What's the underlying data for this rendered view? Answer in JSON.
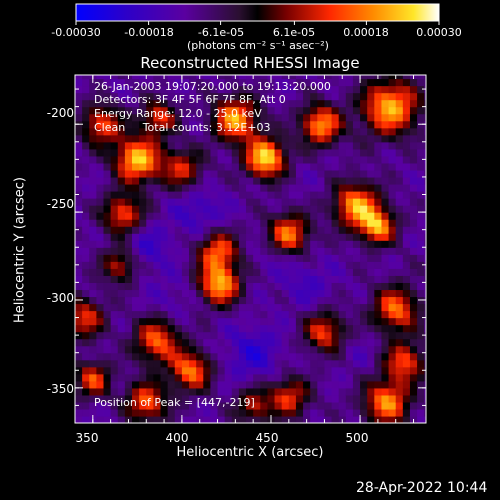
{
  "colorbar": {
    "ticks": [
      "-0.00030",
      "-0.00018",
      "-6.1e-05",
      "6.1e-05",
      "0.00018",
      "0.00030"
    ],
    "tick_values": [
      -0.0003,
      -0.00018,
      -6.1e-05,
      6.1e-05,
      0.00018,
      0.0003
    ],
    "unit": "(photons cm⁻² s⁻¹ asec⁻²)",
    "range": [
      -0.0003,
      0.0003
    ]
  },
  "info": {
    "line1": "26-Jan-2003 19:07:20.000 to 19:13:20.000",
    "line2": "Detectors: 3F 4F 5F 6F 7F 8F, Att 0",
    "line3": "Energy Range: 12.0 - 25.0 keV",
    "line4": "Clean     Total counts: 3.12E+03",
    "peak": "Position of Peak = [447,-219]"
  },
  "timestamp": "28-Apr-2022 10:44",
  "chart_data": {
    "type": "heatmap",
    "title": "Reconstructed RHESSI Image",
    "xlabel": "Heliocentric X (arcsec)",
    "ylabel": "Heliocentric Y (arcsec)",
    "xlim": [
      340,
      537
    ],
    "ylim": [
      -370,
      -172
    ],
    "xticks": [
      350,
      400,
      450,
      500
    ],
    "yticks": [
      -200,
      -250,
      -300,
      -350
    ],
    "peak": [
      447,
      -219
    ],
    "colormap": "rainbow-hot",
    "blobs": [
      {
        "x": 447,
        "y": -219,
        "v": 0.0003,
        "r": 8
      },
      {
        "x": 375,
        "y": -220,
        "v": 0.00028,
        "r": 9
      },
      {
        "x": 430,
        "y": -197,
        "v": 0.00024,
        "r": 9
      },
      {
        "x": 478,
        "y": -200,
        "v": 0.00023,
        "r": 8
      },
      {
        "x": 517,
        "y": -190,
        "v": 0.00026,
        "r": 11
      },
      {
        "x": 498,
        "y": -246,
        "v": 0.00024,
        "r": 9
      },
      {
        "x": 460,
        "y": -262,
        "v": 0.0002,
        "r": 8
      },
      {
        "x": 510,
        "y": -258,
        "v": 0.00022,
        "r": 7
      },
      {
        "x": 420,
        "y": -272,
        "v": 0.00018,
        "r": 8
      },
      {
        "x": 421,
        "y": -291,
        "v": 0.00025,
        "r": 8
      },
      {
        "x": 400,
        "y": -225,
        "v": 0.00012,
        "r": 8
      },
      {
        "x": 367,
        "y": -251,
        "v": 0.00017,
        "r": 8
      },
      {
        "x": 355,
        "y": -200,
        "v": 0.00016,
        "r": 8
      },
      {
        "x": 387,
        "y": -196,
        "v": 0.00014,
        "r": 7
      },
      {
        "x": 365,
        "y": -280,
        "v": 0.00012,
        "r": 7
      },
      {
        "x": 345,
        "y": -310,
        "v": 0.00014,
        "r": 8
      },
      {
        "x": 386,
        "y": -323,
        "v": 0.00018,
        "r": 9
      },
      {
        "x": 405,
        "y": -340,
        "v": 0.0002,
        "r": 8
      },
      {
        "x": 380,
        "y": -358,
        "v": 0.00018,
        "r": 8
      },
      {
        "x": 520,
        "y": -305,
        "v": 0.00019,
        "r": 9
      },
      {
        "x": 480,
        "y": -318,
        "v": 0.00015,
        "r": 8
      },
      {
        "x": 525,
        "y": -335,
        "v": 0.00016,
        "r": 8
      },
      {
        "x": 460,
        "y": -355,
        "v": 0.00014,
        "r": 8
      },
      {
        "x": 515,
        "y": -358,
        "v": 0.00022,
        "r": 9
      },
      {
        "x": 350,
        "y": -345,
        "v": 0.00015,
        "r": 7
      },
      {
        "x": 440,
        "y": -360,
        "v": 0.0001,
        "r": 7
      },
      {
        "x": 410,
        "y": -250,
        "v": -0.0002,
        "r": 10
      },
      {
        "x": 380,
        "y": -270,
        "v": -0.0002,
        "r": 10
      },
      {
        "x": 440,
        "y": -330,
        "v": -0.00022,
        "r": 11
      },
      {
        "x": 470,
        "y": -290,
        "v": -0.00018,
        "r": 10
      },
      {
        "x": 395,
        "y": -300,
        "v": -0.00016,
        "r": 9
      },
      {
        "x": 470,
        "y": -230,
        "v": -0.00012,
        "r": 8
      },
      {
        "x": 360,
        "y": -230,
        "v": -0.00012,
        "r": 7
      },
      {
        "x": 500,
        "y": -330,
        "v": -0.00014,
        "r": 8
      },
      {
        "x": 410,
        "y": -200,
        "v": -0.00012,
        "r": 8
      },
      {
        "x": 500,
        "y": -210,
        "v": -0.0001,
        "r": 7
      },
      {
        "x": 360,
        "y": -370,
        "v": -0.00012,
        "r": 8
      },
      {
        "x": 530,
        "y": -280,
        "v": -0.0001,
        "r": 7
      },
      {
        "x": 450,
        "y": -275,
        "v": -0.00015,
        "r": 7
      }
    ]
  }
}
